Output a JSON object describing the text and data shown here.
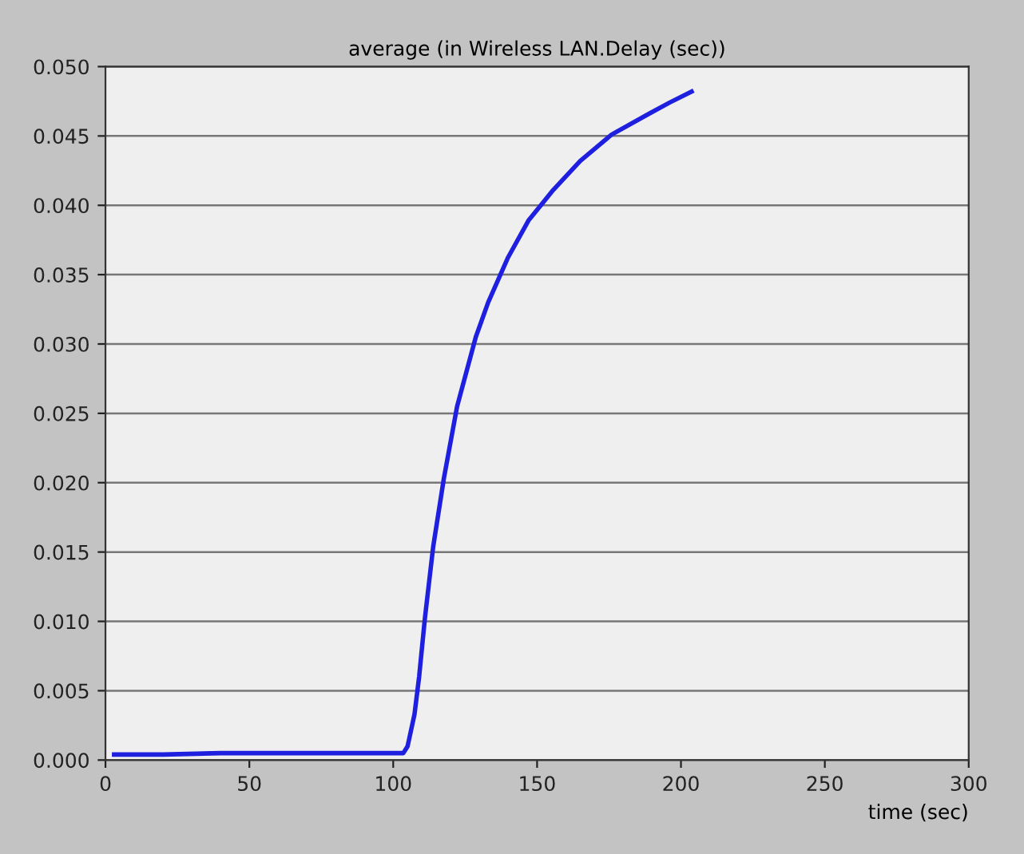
{
  "chart_data": {
    "type": "line",
    "title": "average (in Wireless LAN.Delay (sec))",
    "xlabel": "time (sec)",
    "series": [
      {
        "color": "#1f1fe0",
        "x": [
          3,
          20,
          40,
          60,
          80,
          100,
          103.5,
          105,
          107.4,
          109,
          111,
          113.9,
          117.6,
          122.2,
          128.7,
          133,
          139.8,
          147,
          155.6,
          165,
          175.9,
          188.9,
          196,
          203.7
        ],
        "values": [
          0.0004,
          0.0004,
          0.0005,
          0.0005,
          0.0005,
          0.0005,
          0.0005,
          0.001,
          0.0033,
          0.006,
          0.0102,
          0.0154,
          0.0203,
          0.0255,
          0.0305,
          0.033,
          0.0362,
          0.0389,
          0.0411,
          0.0432,
          0.0451,
          0.0466,
          0.0474,
          0.0482
        ]
      }
    ],
    "xlim": [
      0,
      300
    ],
    "xticks": [
      0,
      50,
      100,
      150,
      200,
      250,
      300
    ],
    "ylim": [
      0,
      0.05
    ],
    "yticks": [
      {
        "value": 0,
        "label": "0.000"
      },
      {
        "value": 0.005,
        "label": "0.005"
      },
      {
        "value": 0.01,
        "label": "0.010"
      },
      {
        "value": 0.015,
        "label": "0.015"
      },
      {
        "value": 0.02,
        "label": "0.020"
      },
      {
        "value": 0.025,
        "label": "0.025"
      },
      {
        "value": 0.03,
        "label": "0.030"
      },
      {
        "value": 0.035,
        "label": "0.035"
      },
      {
        "value": 0.04,
        "label": "0.040"
      },
      {
        "value": 0.045,
        "label": "0.045"
      },
      {
        "value": 0.05,
        "label": "0.050"
      }
    ],
    "grid": "y",
    "legend": false,
    "marker": "none",
    "line_style": "solid"
  }
}
